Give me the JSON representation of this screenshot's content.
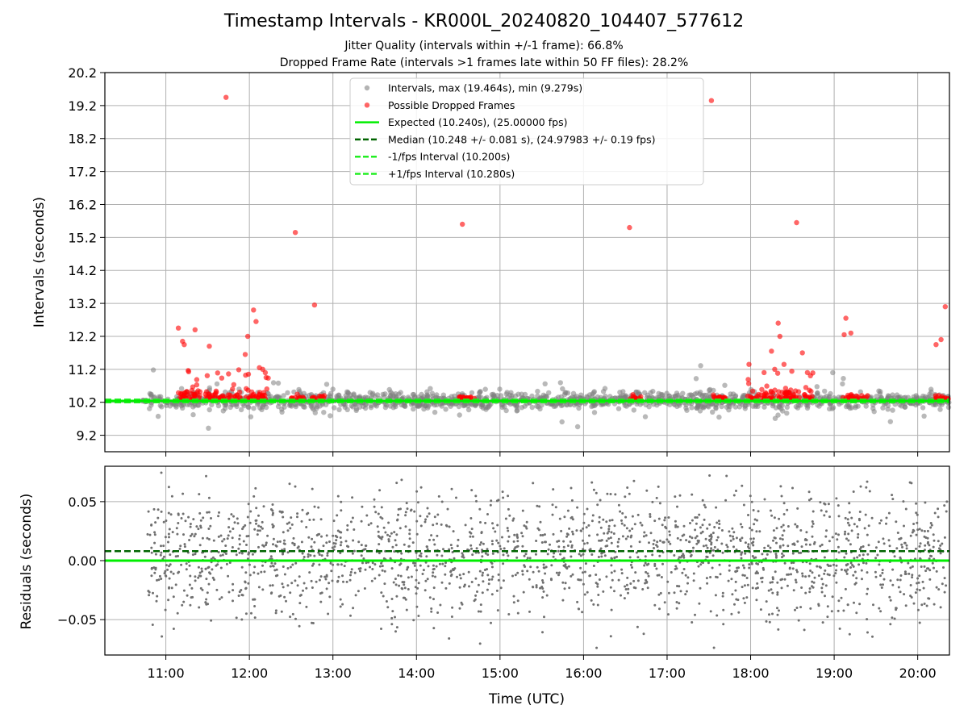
{
  "title": "Timestamp Intervals - KR000L_20240820_104407_577612",
  "subtitle_1": "Jitter Quality (intervals within +/-1 frame): 66.8%",
  "subtitle_2": "Dropped Frame Rate (intervals >1 frames late within 50 FF files): 28.2%",
  "colors": {
    "intervals": "#808080",
    "dropped": "#ff0000",
    "expected": "#00ee00",
    "median": "#006400",
    "fps_bounds": "#22ee22",
    "grid": "#b0b0b0",
    "residuals": "#707070"
  },
  "chart_data": [
    {
      "type": "scatter",
      "ylabel": "Intervals (seconds)",
      "xlim_hours": [
        10.27,
        20.38
      ],
      "ylim": [
        8.7,
        20.2
      ],
      "yticks": [
        "9.2",
        "10.2",
        "11.2",
        "12.2",
        "13.2",
        "14.2",
        "15.2",
        "16.2",
        "17.2",
        "18.2",
        "19.2",
        "20.2"
      ],
      "grid": true,
      "legend_position": "top-center",
      "legend": [
        {
          "label": "Intervals, max (19.464s), min (9.279s)",
          "kind": "marker",
          "color_key": "intervals"
        },
        {
          "label": "Possible Dropped Frames",
          "kind": "marker",
          "color_key": "dropped"
        },
        {
          "label": "Expected (10.240s), (25.00000 fps)",
          "kind": "solid",
          "color_key": "expected"
        },
        {
          "label": "Median (10.248 +/- 0.081 s), (24.97983 +/- 0.19 fps)",
          "kind": "dashed",
          "color_key": "median"
        },
        {
          "label": "-1/fps Interval (10.200s)",
          "kind": "dashed",
          "color_key": "fps_bounds"
        },
        {
          "label": "+1/fps Interval (10.280s)",
          "kind": "dashed",
          "color_key": "fps_bounds"
        }
      ],
      "expected": 10.24,
      "median": 10.248,
      "lower_bound": 10.2,
      "upper_bound": 10.28,
      "dropped_outliers": [
        [
          11.15,
          12.45
        ],
        [
          11.2,
          12.05
        ],
        [
          11.22,
          11.95
        ],
        [
          11.35,
          12.4
        ],
        [
          11.52,
          11.9
        ],
        [
          11.72,
          19.45
        ],
        [
          11.95,
          11.65
        ],
        [
          11.98,
          12.2
        ],
        [
          12.05,
          13.0
        ],
        [
          12.08,
          12.65
        ],
        [
          12.12,
          11.25
        ],
        [
          12.16,
          11.2
        ],
        [
          12.2,
          10.95
        ],
        [
          12.55,
          15.35
        ],
        [
          12.78,
          13.15
        ],
        [
          14.55,
          15.6
        ],
        [
          16.55,
          15.5
        ],
        [
          17.53,
          19.35
        ],
        [
          17.98,
          11.35
        ],
        [
          18.25,
          11.75
        ],
        [
          18.33,
          12.6
        ],
        [
          18.35,
          12.2
        ],
        [
          18.4,
          11.35
        ],
        [
          18.55,
          15.65
        ],
        [
          18.62,
          11.7
        ],
        [
          18.68,
          11.1
        ],
        [
          19.12,
          12.25
        ],
        [
          19.14,
          12.75
        ],
        [
          19.2,
          12.3
        ],
        [
          20.22,
          11.95
        ],
        [
          20.28,
          12.1
        ],
        [
          20.33,
          13.1
        ]
      ],
      "clusters": [
        {
          "start": 11.15,
          "end": 11.9,
          "dense": 1
        },
        {
          "start": 11.95,
          "end": 12.25,
          "dense": 1
        },
        {
          "start": 12.5,
          "end": 12.65,
          "dense": 0
        },
        {
          "start": 12.75,
          "end": 12.9,
          "dense": 0
        },
        {
          "start": 14.5,
          "end": 14.7,
          "dense": 0
        },
        {
          "start": 16.55,
          "end": 16.7,
          "dense": 0
        },
        {
          "start": 17.5,
          "end": 17.7,
          "dense": 0
        },
        {
          "start": 17.95,
          "end": 18.75,
          "dense": 1
        },
        {
          "start": 19.1,
          "end": 19.4,
          "dense": 0
        },
        {
          "start": 20.2,
          "end": 20.38,
          "dense": 0
        }
      ]
    },
    {
      "type": "scatter",
      "xlabel": "Time (UTC)",
      "ylabel": "Residuals (seconds)",
      "xlim_hours": [
        10.27,
        20.38
      ],
      "ylim": [
        -0.08,
        0.08
      ],
      "yticks": [
        "0.05",
        "0.00",
        "−0.05"
      ],
      "ytick_values": [
        0.05,
        0.0,
        -0.05
      ],
      "xticks": [
        "11:00",
        "12:00",
        "13:00",
        "14:00",
        "15:00",
        "16:00",
        "17:00",
        "18:00",
        "19:00",
        "20:00"
      ],
      "xtick_values": [
        11,
        12,
        13,
        14,
        15,
        16,
        17,
        18,
        19,
        20
      ],
      "zero_line": 0.0,
      "median_residual": 0.008,
      "grid": true
    }
  ]
}
